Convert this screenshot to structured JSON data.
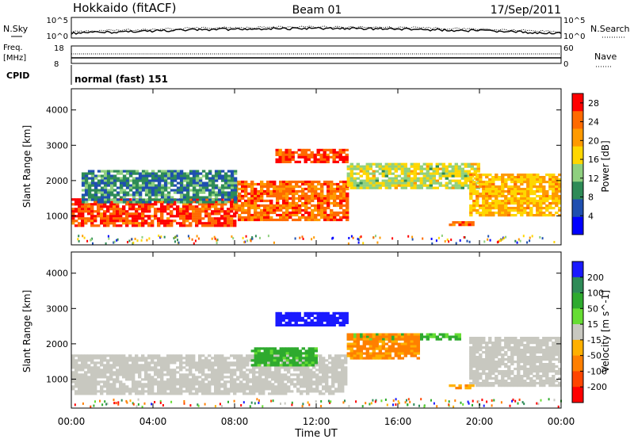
{
  "header": {
    "title": "Hokkaido (fitACF)",
    "beam": "Beam 01",
    "date": "17/Sep/2011"
  },
  "noise_panel": {
    "left_label": "N.Sky",
    "right_label": "N.Search",
    "left_ticks": [
      "10^5",
      "10^0"
    ],
    "right_ticks": [
      "10^5",
      "10^0"
    ]
  },
  "freq_panel": {
    "left_label_line1": "Freq.",
    "left_label_line2": "[MHz]",
    "left_ticks": [
      "18",
      "8"
    ],
    "right_label": "Nave",
    "right_ticks": [
      "60",
      "0"
    ]
  },
  "cpid_panel": {
    "label": "CPID",
    "value": "normal (fast) 151"
  },
  "colors": {
    "power_scale": [
      "#0000ff",
      "#1f4fb0",
      "#2e8b57",
      "#8fd07f",
      "#ffd700",
      "#ff9a00",
      "#ff6a00",
      "#ff0000"
    ],
    "velocity_scale": [
      "#1a1aff",
      "#2e8b57",
      "#2eaa2e",
      "#66dd33",
      "#c8c8c0",
      "#ffb000",
      "#ff7f00",
      "#ff4500",
      "#ff0000"
    ],
    "ground_scatter": "#c8c8c0"
  },
  "chart_data": [
    {
      "type": "heatmap",
      "title": "",
      "xlabel": "Time UT",
      "ylabel": "Slant Range [km]",
      "x_range": [
        "00:00",
        "24:00"
      ],
      "y_range": [
        180,
        4600
      ],
      "x_ticks": [
        "00:00",
        "04:00",
        "08:00",
        "12:00",
        "16:00",
        "20:00",
        "00:00"
      ],
      "y_ticks": [
        1000,
        2000,
        3000,
        4000
      ],
      "colorbar": {
        "label": "Power [dB]",
        "ticks": [
          4,
          8,
          12,
          16,
          20,
          24,
          28
        ],
        "range": [
          0,
          30
        ]
      },
      "features": [
        {
          "time_start_h": 0.0,
          "time_end_h": 8.0,
          "range_km": [
            700,
            1500
          ],
          "value": 26
        },
        {
          "time_start_h": 8.0,
          "time_end_h": 13.5,
          "range_km": [
            900,
            2000
          ],
          "value": 24
        },
        {
          "time_start_h": 10.0,
          "time_end_h": 13.5,
          "range_km": [
            2500,
            2900
          ],
          "value": 26
        },
        {
          "time_start_h": 0.5,
          "time_end_h": 8.0,
          "range_km": [
            1400,
            2300
          ],
          "value": 9
        },
        {
          "time_start_h": 13.5,
          "time_end_h": 20.0,
          "range_km": [
            1800,
            2500
          ],
          "value": 15
        },
        {
          "time_start_h": 19.5,
          "time_end_h": 24.0,
          "range_km": [
            1000,
            2200
          ],
          "value": 19
        },
        {
          "time_start_h": 18.5,
          "time_end_h": 19.7,
          "range_km": [
            750,
            850
          ],
          "value": 24
        }
      ]
    },
    {
      "type": "heatmap",
      "title": "",
      "xlabel": "Time UT",
      "ylabel": "Slant Range [km]",
      "x_range": [
        "00:00",
        "24:00"
      ],
      "y_range": [
        180,
        4600
      ],
      "x_ticks": [
        "00:00",
        "04:00",
        "08:00",
        "12:00",
        "16:00",
        "20:00",
        "00:00"
      ],
      "y_ticks": [
        1000,
        2000,
        3000,
        4000
      ],
      "colorbar": {
        "label": "Velocity [m s^-1]",
        "ticks": [
          200,
          100,
          50,
          15,
          -15,
          -50,
          -100,
          -200
        ],
        "range": [
          -250,
          250
        ]
      },
      "features": [
        {
          "time_start_h": 0.0,
          "time_end_h": 13.5,
          "range_km": [
            600,
            1700
          ],
          "value": "ground scatter"
        },
        {
          "time_start_h": 10.0,
          "time_end_h": 13.5,
          "range_km": [
            2500,
            2900
          ],
          "value": 220
        },
        {
          "time_start_h": 8.8,
          "time_end_h": 12.0,
          "range_km": [
            1400,
            1900
          ],
          "value": 45
        },
        {
          "time_start_h": 13.5,
          "time_end_h": 19.0,
          "range_km": [
            2100,
            2300
          ],
          "value": 40
        },
        {
          "time_start_h": 13.5,
          "time_end_h": 17.0,
          "range_km": [
            1600,
            2300
          ],
          "value": -60
        },
        {
          "time_start_h": 19.5,
          "time_end_h": 24.0,
          "range_km": [
            800,
            2200
          ],
          "value": "ground scatter"
        },
        {
          "time_start_h": 18.5,
          "time_end_h": 19.7,
          "range_km": [
            750,
            850
          ],
          "value": -40
        }
      ]
    }
  ]
}
